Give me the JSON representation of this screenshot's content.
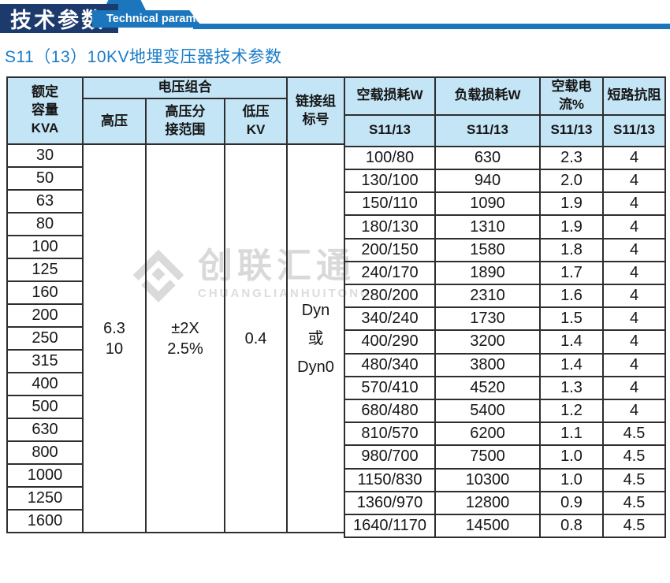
{
  "banner": {
    "title_cn": "技术参数",
    "title_en": "Technical parameter",
    "navy_color": "#1c3a6c",
    "blue_color": "#1b76bd"
  },
  "page_title": "S11（13）10KV地埋变压器技术参数",
  "watermark": {
    "name_cn": "创联汇通",
    "name_en": "CHUANGLIANHUITONG"
  },
  "table": {
    "header": {
      "capacity": "额定\n容量\nKVA",
      "voltage_group": "电压组合",
      "hv": "高压",
      "hv_tap": "高压分\n接范围",
      "lv": "低压\nKV",
      "vector": "链接组\n标号",
      "no_load_loss": "空载损耗W",
      "load_loss": "负载损耗W",
      "no_load_current": "空载电流%",
      "impedance": "短路抗阻",
      "sub": "S11/13"
    },
    "merged": {
      "hv_value": "6.3\n10",
      "tap_value": "±2X\n2.5%",
      "lv_value": "0.4",
      "vector_value": "Dyn\n或\nDyn0"
    },
    "header_bg": "#c4e5f6",
    "border_color": "#2e2e2e",
    "rows": [
      {
        "capacity": "30",
        "no_load_loss": "100/80",
        "load_loss": "630",
        "no_load_current": "2.3",
        "impedance": "4"
      },
      {
        "capacity": "50",
        "no_load_loss": "130/100",
        "load_loss": "940",
        "no_load_current": "2.0",
        "impedance": "4"
      },
      {
        "capacity": "63",
        "no_load_loss": "150/110",
        "load_loss": "1090",
        "no_load_current": "1.9",
        "impedance": "4"
      },
      {
        "capacity": "80",
        "no_load_loss": "180/130",
        "load_loss": "1310",
        "no_load_current": "1.9",
        "impedance": "4"
      },
      {
        "capacity": "100",
        "no_load_loss": "200/150",
        "load_loss": "1580",
        "no_load_current": "1.8",
        "impedance": "4"
      },
      {
        "capacity": "125",
        "no_load_loss": "240/170",
        "load_loss": "1890",
        "no_load_current": "1.7",
        "impedance": "4"
      },
      {
        "capacity": "160",
        "no_load_loss": "280/200",
        "load_loss": "2310",
        "no_load_current": "1.6",
        "impedance": "4"
      },
      {
        "capacity": "200",
        "no_load_loss": "340/240",
        "load_loss": "1730",
        "no_load_current": "1.5",
        "impedance": "4"
      },
      {
        "capacity": "250",
        "no_load_loss": "400/290",
        "load_loss": "3200",
        "no_load_current": "1.4",
        "impedance": "4"
      },
      {
        "capacity": "315",
        "no_load_loss": "480/340",
        "load_loss": "3800",
        "no_load_current": "1.4",
        "impedance": "4"
      },
      {
        "capacity": "400",
        "no_load_loss": "570/410",
        "load_loss": "4520",
        "no_load_current": "1.3",
        "impedance": "4"
      },
      {
        "capacity": "500",
        "no_load_loss": "680/480",
        "load_loss": "5400",
        "no_load_current": "1.2",
        "impedance": "4"
      },
      {
        "capacity": "630",
        "no_load_loss": "810/570",
        "load_loss": "6200",
        "no_load_current": "1.1",
        "impedance": "4.5"
      },
      {
        "capacity": "800",
        "no_load_loss": "980/700",
        "load_loss": "7500",
        "no_load_current": "1.0",
        "impedance": "4.5"
      },
      {
        "capacity": "1000",
        "no_load_loss": "1150/830",
        "load_loss": "10300",
        "no_load_current": "1.0",
        "impedance": "4.5"
      },
      {
        "capacity": "1250",
        "no_load_loss": "1360/970",
        "load_loss": "12800",
        "no_load_current": "0.9",
        "impedance": "4.5"
      },
      {
        "capacity": "1600",
        "no_load_loss": "1640/1170",
        "load_loss": "14500",
        "no_load_current": "0.8",
        "impedance": "4.5"
      }
    ]
  }
}
